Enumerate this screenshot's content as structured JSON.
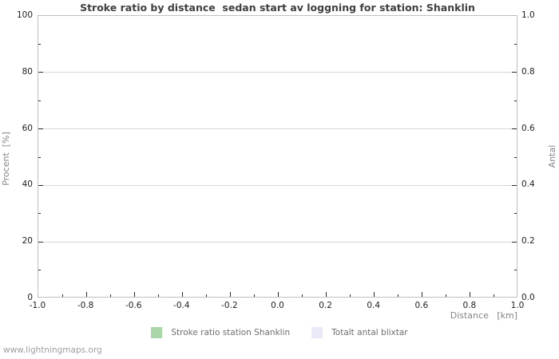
{
  "title": "Stroke ratio by distance  sedan start av loggning for station: Shanklin",
  "footer": "www.lightningmaps.org",
  "colors": {
    "title_text": "#3f3f3f",
    "tick_label_text": "#1e1e1e",
    "axis_unit_text": "#848484",
    "legend_text": "#6e6e6e",
    "footer_text": "#9e9e9e",
    "plot_border": "#bfbfbf",
    "gridline": "#d6d6d6",
    "tick_mark": "#2a2a2a",
    "series_green": "#a9d7a9",
    "series_lavender": "#e9e9f7"
  },
  "chart_data": {
    "type": "bar",
    "title": "Stroke ratio by distance  sedan start av loggning for station: Shanklin",
    "xlabel": "Distance   [km]",
    "ylabel_left": "Procent  [%]",
    "ylabel_right": "Antal",
    "xlim": [
      -1.0,
      1.0
    ],
    "ylim_left": [
      0,
      100
    ],
    "ylim_right": [
      0.0,
      1.0
    ],
    "grid": "horizontal-major-only",
    "legend_position": "bottom-center",
    "x_values": [
      -1.0,
      -0.8,
      -0.6,
      -0.4,
      -0.2,
      0.0,
      0.2,
      0.4,
      0.6,
      0.8,
      1.0
    ],
    "x_labels": [
      "-1.0",
      "-0.8",
      "-0.6",
      "-0.4",
      "-0.2",
      "0.0",
      "0.2",
      "0.4",
      "0.6",
      "0.8",
      "1.0"
    ],
    "x_minor_values": [
      -0.9,
      -0.7,
      -0.5,
      -0.3,
      -0.1,
      0.1,
      0.3,
      0.5,
      0.7,
      0.9
    ],
    "y_left_values": [
      0,
      20,
      40,
      60,
      80,
      100
    ],
    "y_left_labels": [
      "0",
      "20",
      "40",
      "60",
      "80",
      "100"
    ],
    "y_minor_values": [
      10,
      30,
      50,
      70,
      90
    ],
    "y_right_labels": [
      "0.0",
      "0.2",
      "0.4",
      "0.6",
      "0.8",
      "1.0"
    ],
    "series": [
      {
        "name": "Stroke ratio station Shanklin",
        "color": "#a9d7a9",
        "values": []
      },
      {
        "name": "Totalt antal blixtar",
        "color": "#e9e9f7",
        "values": []
      }
    ]
  }
}
